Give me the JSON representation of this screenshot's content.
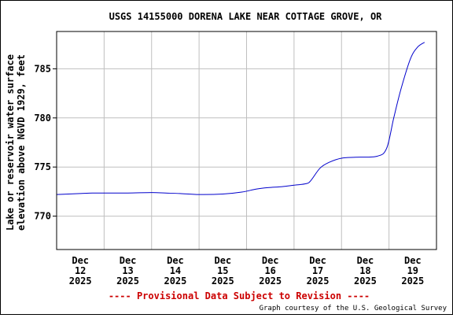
{
  "chart_data": {
    "type": "line",
    "title": "USGS 14155000 DORENA LAKE NEAR COTTAGE GROVE, OR",
    "ylabel_line1": "Lake or reservoir water surface",
    "ylabel_line2": "elevation above NGVD 1929, feet",
    "xlabel": "",
    "ylim": [
      766.6,
      788.8
    ],
    "yticks": [
      770,
      775,
      780,
      785
    ],
    "xlim": [
      0,
      8
    ],
    "xticks": [
      {
        "x": 0.5,
        "lines": [
          "Dec",
          "12",
          "2025"
        ]
      },
      {
        "x": 1.5,
        "lines": [
          "Dec",
          "13",
          "2025"
        ]
      },
      {
        "x": 2.5,
        "lines": [
          "Dec",
          "14",
          "2025"
        ]
      },
      {
        "x": 3.5,
        "lines": [
          "Dec",
          "15",
          "2025"
        ]
      },
      {
        "x": 4.5,
        "lines": [
          "Dec",
          "16",
          "2025"
        ]
      },
      {
        "x": 5.5,
        "lines": [
          "Dec",
          "17",
          "2025"
        ]
      },
      {
        "x": 6.5,
        "lines": [
          "Dec",
          "18",
          "2025"
        ]
      },
      {
        "x": 7.5,
        "lines": [
          "Dec",
          "19",
          "2025"
        ]
      }
    ],
    "vgrid": [
      1,
      2,
      3,
      4,
      5,
      6,
      7
    ],
    "grid": true,
    "series": [
      {
        "name": "",
        "color": "#0000cc",
        "x": [
          0,
          0.25,
          0.5,
          0.75,
          1.0,
          1.5,
          2.0,
          2.3,
          2.6,
          3.0,
          3.5,
          3.9,
          4.2,
          4.45,
          4.75,
          5.0,
          5.25,
          5.35,
          5.55,
          5.75,
          6.0,
          6.3,
          6.75,
          6.95,
          7.1,
          7.25,
          7.45,
          7.6,
          7.75
        ],
        "values": [
          772.2,
          772.25,
          772.3,
          772.35,
          772.35,
          772.35,
          772.4,
          772.35,
          772.3,
          772.2,
          772.25,
          772.45,
          772.75,
          772.9,
          773.0,
          773.15,
          773.3,
          773.6,
          774.9,
          775.5,
          775.9,
          776.0,
          776.1,
          776.9,
          780.0,
          782.9,
          786.0,
          787.2,
          787.7
        ]
      }
    ]
  },
  "provisional_note": "---- Provisional Data Subject to Revision ----",
  "courtesy": "Graph courtesy of the U.S. Geological Survey",
  "colors": {
    "line": "#0000cc",
    "grid": "#bfbfbf",
    "note": "#cc0000"
  }
}
